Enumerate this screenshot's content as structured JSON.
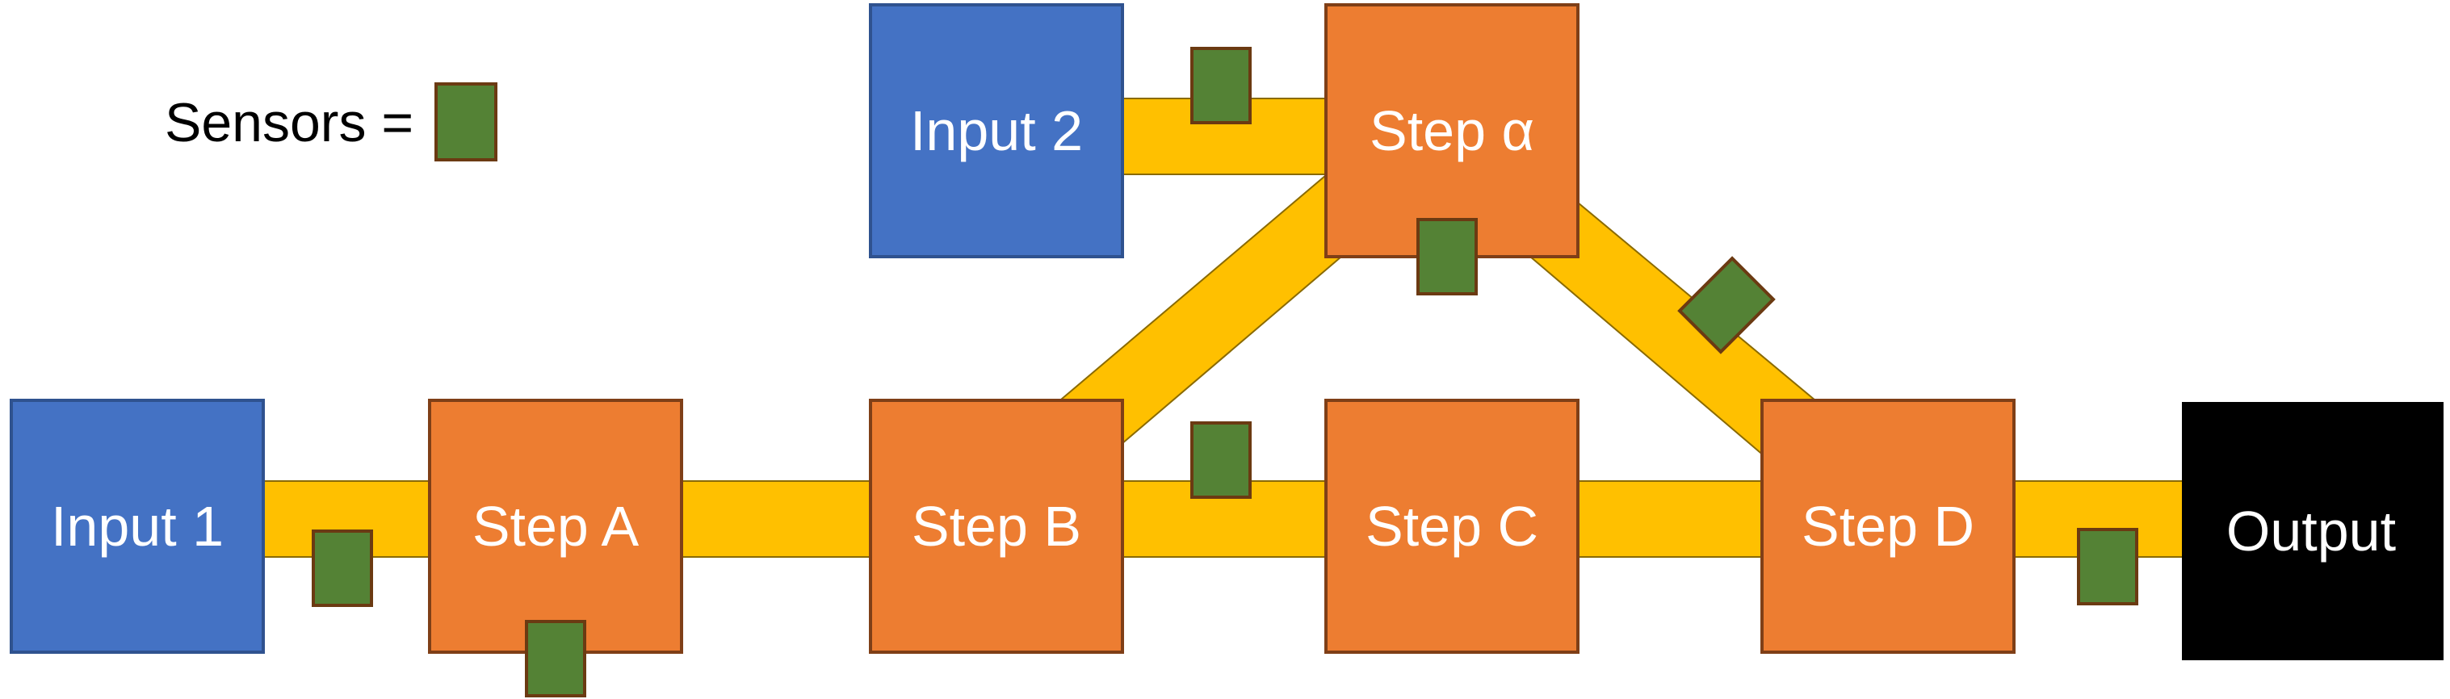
{
  "legend": {
    "label": "Sensors ="
  },
  "colors": {
    "input": "#4472C4",
    "input_border": "#2F528F",
    "step": "#ED7D31",
    "step_border": "#7F3F17",
    "output": "#000000",
    "pipe": "#FFC000",
    "pipe_border": "#8A6A00",
    "sensor": "#548235",
    "sensor_border": "#6B3A12"
  },
  "nodes": [
    {
      "id": "input-1",
      "label": "Input 1",
      "kind": "input"
    },
    {
      "id": "input-2",
      "label": "Input 2",
      "kind": "input"
    },
    {
      "id": "step-a",
      "label": "Step A",
      "kind": "step"
    },
    {
      "id": "step-b",
      "label": "Step B",
      "kind": "step"
    },
    {
      "id": "step-alpha",
      "label": "Step α",
      "kind": "step"
    },
    {
      "id": "step-c",
      "label": "Step C",
      "kind": "step"
    },
    {
      "id": "step-d",
      "label": "Step D",
      "kind": "step"
    },
    {
      "id": "output",
      "label": "Output",
      "kind": "output"
    }
  ],
  "connections": [
    {
      "from": "input-1",
      "to": "step-a"
    },
    {
      "from": "step-a",
      "to": "step-b"
    },
    {
      "from": "step-b",
      "to": "step-c"
    },
    {
      "from": "step-c",
      "to": "step-d"
    },
    {
      "from": "step-d",
      "to": "output"
    },
    {
      "from": "input-2",
      "to": "step-alpha"
    },
    {
      "from": "step-b",
      "to": "step-alpha"
    },
    {
      "from": "step-alpha",
      "to": "step-d"
    }
  ]
}
